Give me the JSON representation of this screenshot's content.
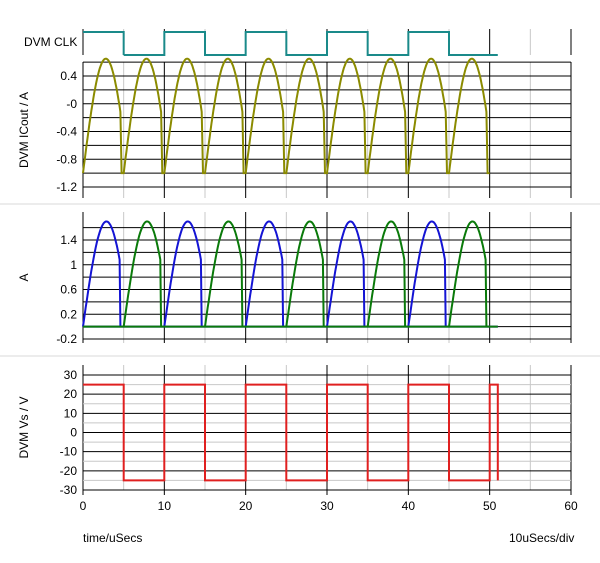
{
  "chart_data": [
    {
      "type": "line",
      "panel": "clock",
      "ylabel": "DVM CLK",
      "color": "#1a8a8a",
      "period_us": 10,
      "high_intervals": [
        [
          10,
          15
        ],
        [
          20,
          25
        ],
        [
          30,
          35
        ],
        [
          40,
          45
        ]
      ],
      "x_range": [
        5,
        51
      ]
    },
    {
      "type": "line",
      "panel": "current",
      "ylabel": "DVM ICout / A",
      "ylim": [
        -1.3,
        0.8
      ],
      "yticks": [
        0.4,
        -0.0,
        -0.4,
        -0.8,
        -1.2
      ],
      "ytick_labels": [
        "0.4",
        "-0",
        "-0.4",
        "-0.8",
        "-1.2"
      ],
      "series": [
        {
          "color": "#8b8b00",
          "pulse_starts_us": [
            0,
            5,
            10,
            15,
            20,
            25,
            30,
            35,
            40,
            45
          ],
          "pulse_width_us": 5,
          "peak": 0.65,
          "low": -1.0
        }
      ]
    },
    {
      "type": "line",
      "panel": "phase-currents",
      "ylabel": "A",
      "ylim": [
        -0.35,
        1.9
      ],
      "yticks": [
        1.4,
        1,
        0.6,
        0.2,
        -0.2
      ],
      "ytick_labels": [
        "1.4",
        "1",
        "0.6",
        "0.2",
        "-0.2"
      ],
      "series": [
        {
          "color": "#1414d4",
          "pulse_starts_us": [
            0,
            10,
            20,
            30,
            40
          ],
          "pulse_width_us": 5,
          "peak": 1.7,
          "low": 0
        },
        {
          "color": "#0a7a0a",
          "pulse_starts_us": [
            5,
            15,
            25,
            35,
            45
          ],
          "pulse_width_us": 5,
          "peak": 1.7,
          "low": 0
        }
      ]
    },
    {
      "type": "line",
      "panel": "voltage",
      "ylabel": "DVM Vs / V",
      "ylim": [
        -32,
        32
      ],
      "yticks": [
        30,
        20,
        10,
        0,
        -10,
        -20,
        -30
      ],
      "ytick_labels": [
        "30",
        "20",
        "10",
        "0",
        "-10",
        "-20",
        "-30"
      ],
      "series": [
        {
          "color": "#e02020",
          "high_value": 25,
          "low_value": -25,
          "high_intervals": [
            [
              0,
              5
            ],
            [
              10,
              15
            ],
            [
              20,
              25
            ],
            [
              30,
              35
            ],
            [
              40,
              45
            ],
            [
              50,
              51
            ]
          ],
          "x_range": [
            0,
            51
          ]
        }
      ]
    }
  ],
  "x_axis": {
    "range": [
      0,
      60
    ],
    "ticks": [
      0,
      10,
      20,
      30,
      40,
      50,
      60
    ],
    "tick_labels": [
      "0",
      "10",
      "20",
      "30",
      "40",
      "50",
      "60"
    ],
    "minor_step": 5
  },
  "xlabel": "time/uSecs",
  "scale_label": "10uSecs/div"
}
